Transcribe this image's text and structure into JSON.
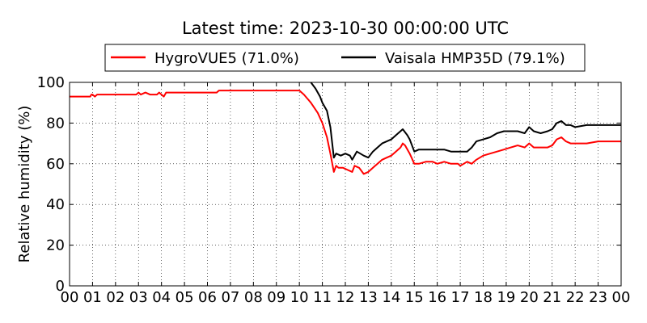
{
  "chart_data": {
    "type": "line",
    "title": "Latest time: 2023-10-30 00:00:00 UTC",
    "xlabel": "",
    "ylabel": "Relative humidity (%)",
    "x_ticks": [
      "00",
      "01",
      "02",
      "03",
      "04",
      "05",
      "06",
      "07",
      "08",
      "09",
      "10",
      "11",
      "12",
      "13",
      "14",
      "15",
      "16",
      "17",
      "18",
      "19",
      "20",
      "21",
      "22",
      "23",
      "00"
    ],
    "xlim": [
      0,
      24
    ],
    "ylim": [
      0,
      100
    ],
    "y_ticks": [
      0,
      20,
      40,
      60,
      80,
      100
    ],
    "grid": true,
    "legend_position": "top-center",
    "series": [
      {
        "name": "HygroVUE5 (71.0%)",
        "color": "#ff0000",
        "x": [
          0,
          0.9,
          0.95,
          1.0,
          1.1,
          1.2,
          1.3,
          1.6,
          2.0,
          2.5,
          2.9,
          3.0,
          3.1,
          3.3,
          3.5,
          3.8,
          3.9,
          4.0,
          4.1,
          4.2,
          5.0,
          6.0,
          6.4,
          6.5,
          7.0,
          8.0,
          9.0,
          9.5,
          9.8,
          10.0,
          10.2,
          10.5,
          10.8,
          11.0,
          11.2,
          11.35,
          11.5,
          11.6,
          11.7,
          11.9,
          12.1,
          12.3,
          12.4,
          12.6,
          12.8,
          13.0,
          13.2,
          13.4,
          13.6,
          13.8,
          14.0,
          14.2,
          14.4,
          14.5,
          14.6,
          14.8,
          15.0,
          15.2,
          15.5,
          15.8,
          16.0,
          16.3,
          16.6,
          16.9,
          17.0,
          17.3,
          17.5,
          17.7,
          18.0,
          18.3,
          18.6,
          18.9,
          19.2,
          19.5,
          19.8,
          20.0,
          20.2,
          20.5,
          20.8,
          21.0,
          21.2,
          21.4,
          21.6,
          21.8,
          22.0,
          22.5,
          23.0,
          23.5,
          24.0
        ],
        "values": [
          93,
          93,
          94,
          94,
          93,
          94,
          94,
          94,
          94,
          94,
          94,
          95,
          94,
          95,
          94,
          94,
          95,
          94,
          93,
          95,
          95,
          95,
          95,
          96,
          96,
          96,
          96,
          96,
          96,
          96,
          94,
          90,
          85,
          80,
          73,
          65,
          56,
          59,
          58,
          58,
          57,
          56,
          59,
          58,
          55,
          56,
          58,
          60,
          62,
          63,
          64,
          66,
          68,
          70,
          69,
          65,
          60,
          60,
          61,
          61,
          60,
          61,
          60,
          60,
          59,
          61,
          60,
          62,
          64,
          65,
          66,
          67,
          68,
          69,
          68,
          70,
          68,
          68,
          68,
          69,
          72,
          73,
          71,
          70,
          70,
          70,
          71,
          71,
          71
        ]
      },
      {
        "name": "Vaisala HMP35D (79.1%)",
        "color": "#000000",
        "x": [
          10.5,
          10.7,
          10.9,
          11.0,
          11.2,
          11.35,
          11.5,
          11.6,
          11.8,
          12.0,
          12.2,
          12.3,
          12.5,
          12.8,
          13.0,
          13.2,
          13.4,
          13.6,
          13.8,
          14.0,
          14.2,
          14.4,
          14.5,
          14.7,
          14.8,
          15.0,
          15.2,
          15.5,
          15.8,
          16.0,
          16.3,
          16.6,
          16.9,
          17.0,
          17.3,
          17.5,
          17.7,
          18.0,
          18.3,
          18.6,
          18.9,
          19.2,
          19.5,
          19.8,
          20.0,
          20.2,
          20.5,
          20.8,
          21.0,
          21.2,
          21.4,
          21.6,
          21.8,
          22.0,
          22.5,
          23.0,
          23.5,
          24.0
        ],
        "values": [
          100,
          97,
          93,
          90,
          86,
          78,
          63,
          65,
          64,
          65,
          64,
          62,
          66,
          64,
          63,
          66,
          68,
          70,
          71,
          72,
          74,
          76,
          77,
          74,
          72,
          66,
          67,
          67,
          67,
          67,
          67,
          66,
          66,
          66,
          66,
          68,
          71,
          72,
          73,
          75,
          76,
          76,
          76,
          75,
          78,
          76,
          75,
          76,
          77,
          80,
          81,
          79,
          79,
          78,
          79,
          79,
          79,
          79
        ]
      }
    ]
  }
}
